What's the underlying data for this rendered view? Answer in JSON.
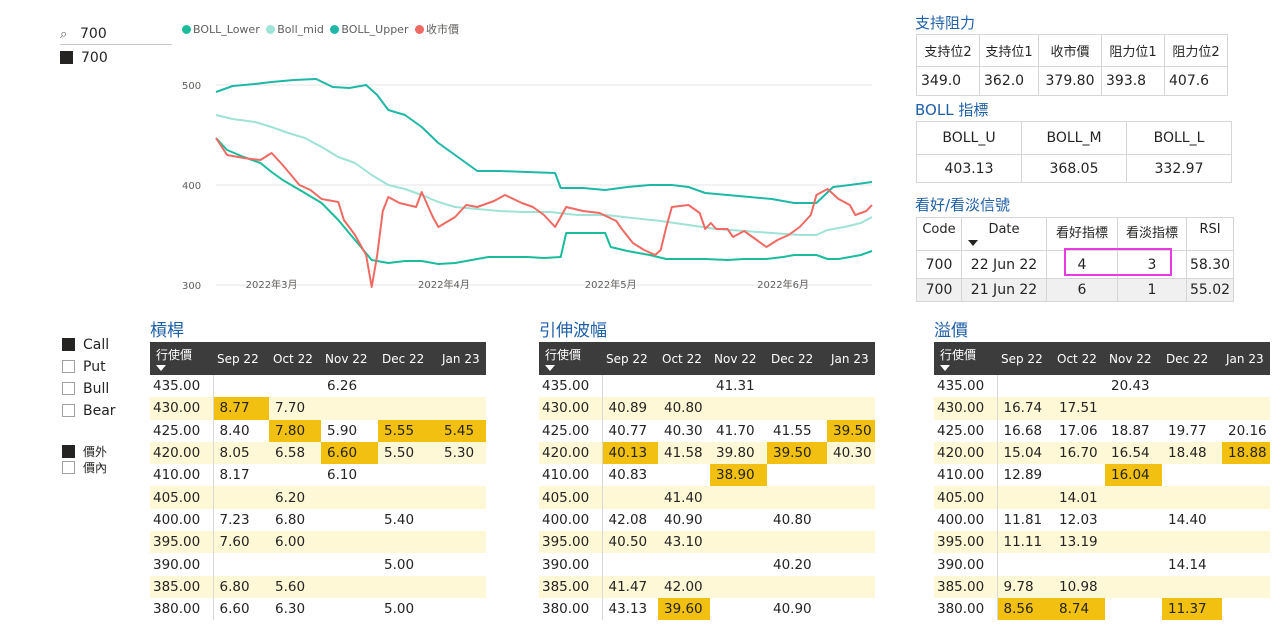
{
  "slicer": {
    "search_value": "700",
    "items": [
      {
        "label": "700",
        "checked": true
      }
    ]
  },
  "options_slicer": [
    {
      "label": "Call",
      "checked": true
    },
    {
      "label": "Put",
      "checked": false
    },
    {
      "label": "Bull",
      "checked": false
    },
    {
      "label": "Bear",
      "checked": false
    }
  ],
  "money_slicer": [
    {
      "label": "價外",
      "checked": true
    },
    {
      "label": "價內",
      "checked": false
    }
  ],
  "chart_data": {
    "type": "line",
    "title": "",
    "xlabel": "",
    "ylabel": "",
    "ylim": [
      285,
      525
    ],
    "yticks": [
      300,
      400,
      500
    ],
    "x_ticks": [
      "2022年3月",
      "2022年4月",
      "2022年5月",
      "2022年6月"
    ],
    "x_range_days": [
      0,
      118
    ],
    "x_tick_days": [
      10,
      41,
      71,
      102
    ],
    "series": [
      {
        "name": "BOLL_Lower",
        "color": "#1abc9c",
        "points": [
          [
            0,
            447
          ],
          [
            2,
            435
          ],
          [
            5,
            428
          ],
          [
            8,
            422
          ],
          [
            10,
            413
          ],
          [
            12,
            405
          ],
          [
            16,
            392
          ],
          [
            19,
            382
          ],
          [
            22,
            365
          ],
          [
            25,
            345
          ],
          [
            28,
            325
          ],
          [
            31,
            322
          ],
          [
            34,
            324
          ],
          [
            37,
            324
          ],
          [
            40,
            321
          ],
          [
            43,
            322
          ],
          [
            46,
            325
          ],
          [
            49,
            328
          ],
          [
            52,
            328
          ],
          [
            56,
            328
          ],
          [
            59,
            327
          ],
          [
            62,
            328
          ],
          [
            63,
            352
          ],
          [
            70,
            352
          ],
          [
            71,
            338
          ],
          [
            74,
            334
          ],
          [
            78,
            330
          ],
          [
            81,
            326
          ],
          [
            84,
            326
          ],
          [
            88,
            326
          ],
          [
            92,
            325
          ],
          [
            95,
            326
          ],
          [
            99,
            326
          ],
          [
            102,
            328
          ],
          [
            104,
            330
          ],
          [
            108,
            330
          ],
          [
            110,
            326
          ],
          [
            112,
            326
          ],
          [
            114,
            328
          ],
          [
            116,
            330
          ],
          [
            118,
            334
          ]
        ]
      },
      {
        "name": "Boll_mid",
        "color": "#9fe2d6",
        "points": [
          [
            0,
            470
          ],
          [
            3,
            466
          ],
          [
            7,
            463
          ],
          [
            10,
            458
          ],
          [
            13,
            452
          ],
          [
            16,
            447
          ],
          [
            19,
            438
          ],
          [
            22,
            428
          ],
          [
            25,
            422
          ],
          [
            28,
            410
          ],
          [
            31,
            400
          ],
          [
            34,
            396
          ],
          [
            37,
            390
          ],
          [
            40,
            383
          ],
          [
            43,
            378
          ],
          [
            47,
            376
          ],
          [
            51,
            374
          ],
          [
            55,
            373
          ],
          [
            60,
            373
          ],
          [
            65,
            370
          ],
          [
            70,
            370
          ],
          [
            75,
            367
          ],
          [
            80,
            364
          ],
          [
            85,
            360
          ],
          [
            90,
            356
          ],
          [
            95,
            354
          ],
          [
            100,
            352
          ],
          [
            105,
            350
          ],
          [
            108,
            350
          ],
          [
            110,
            355
          ],
          [
            113,
            358
          ],
          [
            116,
            362
          ],
          [
            118,
            368
          ]
        ]
      },
      {
        "name": "BOLL_Upper",
        "color": "#1fb8a6",
        "points": [
          [
            0,
            493
          ],
          [
            3,
            499
          ],
          [
            7,
            501
          ],
          [
            10,
            503
          ],
          [
            14,
            505
          ],
          [
            18,
            506
          ],
          [
            21,
            498
          ],
          [
            24,
            497
          ],
          [
            27,
            500
          ],
          [
            29,
            490
          ],
          [
            31,
            475
          ],
          [
            34,
            470
          ],
          [
            37,
            458
          ],
          [
            40,
            442
          ],
          [
            43,
            430
          ],
          [
            45,
            422
          ],
          [
            47,
            414
          ],
          [
            51,
            414
          ],
          [
            56,
            413
          ],
          [
            61,
            412
          ],
          [
            62,
            397
          ],
          [
            66,
            397
          ],
          [
            70,
            395
          ],
          [
            74,
            398
          ],
          [
            78,
            400
          ],
          [
            82,
            400
          ],
          [
            85,
            398
          ],
          [
            88,
            392
          ],
          [
            92,
            390
          ],
          [
            96,
            388
          ],
          [
            100,
            386
          ],
          [
            104,
            382
          ],
          [
            108,
            382
          ],
          [
            111,
            398
          ],
          [
            114,
            400
          ],
          [
            118,
            403
          ]
        ]
      },
      {
        "name": "收市價",
        "color": "#f06a64",
        "points": [
          [
            0,
            447
          ],
          [
            2,
            430
          ],
          [
            5,
            427
          ],
          [
            8,
            425
          ],
          [
            10,
            432
          ],
          [
            12,
            420
          ],
          [
            15,
            400
          ],
          [
            17,
            395
          ],
          [
            19,
            386
          ],
          [
            22,
            383
          ],
          [
            23,
            365
          ],
          [
            25,
            350
          ],
          [
            27,
            330
          ],
          [
            28,
            298
          ],
          [
            29,
            330
          ],
          [
            30,
            374
          ],
          [
            31,
            388
          ],
          [
            33,
            382
          ],
          [
            36,
            378
          ],
          [
            37,
            393
          ],
          [
            39,
            368
          ],
          [
            40,
            358
          ],
          [
            43,
            368
          ],
          [
            45,
            380
          ],
          [
            47,
            378
          ],
          [
            50,
            384
          ],
          [
            52,
            390
          ],
          [
            55,
            382
          ],
          [
            57,
            378
          ],
          [
            59,
            370
          ],
          [
            61,
            358
          ],
          [
            63,
            378
          ],
          [
            66,
            374
          ],
          [
            69,
            372
          ],
          [
            72,
            364
          ],
          [
            73,
            356
          ],
          [
            75,
            342
          ],
          [
            77,
            335
          ],
          [
            79,
            330
          ],
          [
            80,
            335
          ],
          [
            81,
            358
          ],
          [
            82,
            378
          ],
          [
            85,
            380
          ],
          [
            86,
            376
          ],
          [
            87,
            372
          ],
          [
            88,
            356
          ],
          [
            89,
            362
          ],
          [
            90,
            356
          ],
          [
            92,
            356
          ],
          [
            93,
            348
          ],
          [
            95,
            354
          ],
          [
            97,
            346
          ],
          [
            99,
            338
          ],
          [
            101,
            345
          ],
          [
            103,
            350
          ],
          [
            105,
            358
          ],
          [
            107,
            370
          ],
          [
            108,
            390
          ],
          [
            110,
            396
          ],
          [
            112,
            386
          ],
          [
            114,
            380
          ],
          [
            115,
            370
          ],
          [
            117,
            374
          ],
          [
            118,
            380
          ]
        ]
      }
    ]
  },
  "support_resistance": {
    "title": "支持阻力",
    "headers": [
      "支持位2",
      "支持位1",
      "收市價",
      "阻力位1",
      "阻力位2"
    ],
    "values": [
      "349.0",
      "362.0",
      "379.80",
      "393.8",
      "407.6"
    ]
  },
  "boll": {
    "title": "BOLL 指標",
    "headers": [
      "BOLL_U",
      "BOLL_M",
      "BOLL_L"
    ],
    "values": [
      "403.13",
      "368.05",
      "332.97"
    ]
  },
  "signals": {
    "title": "看好/看淡信號",
    "headers": [
      "Code",
      "Date",
      "看好指標",
      "看淡指標",
      "RSI"
    ],
    "rows": [
      [
        "700",
        "22 Jun 22",
        "4",
        "3",
        "58.30"
      ],
      [
        "700",
        "21 Jun 22",
        "6",
        "1",
        "55.02"
      ]
    ]
  },
  "matrices": [
    {
      "title": "槓桿",
      "headers": [
        "行使價",
        "Sep 22",
        "Oct 22",
        "Nov 22",
        "Dec 22",
        "Jan 23"
      ],
      "rows": [
        {
          "k": "435.00",
          "v": [
            "",
            "",
            "6.26",
            "",
            ""
          ],
          "hl": []
        },
        {
          "k": "430.00",
          "v": [
            "8.77",
            "7.70",
            "",
            "",
            ""
          ],
          "hl": [
            0
          ]
        },
        {
          "k": "425.00",
          "v": [
            "8.40",
            "7.80",
            "5.90",
            "5.55",
            "5.45"
          ],
          "hl": [
            1,
            3,
            4
          ]
        },
        {
          "k": "420.00",
          "v": [
            "8.05",
            "6.58",
            "6.60",
            "5.50",
            "5.30"
          ],
          "hl": [
            2
          ]
        },
        {
          "k": "410.00",
          "v": [
            "8.17",
            "",
            "6.10",
            "",
            ""
          ],
          "hl": []
        },
        {
          "k": "405.00",
          "v": [
            "",
            "6.20",
            "",
            "",
            ""
          ],
          "hl": []
        },
        {
          "k": "400.00",
          "v": [
            "7.23",
            "6.80",
            "",
            "5.40",
            ""
          ],
          "hl": []
        },
        {
          "k": "395.00",
          "v": [
            "7.60",
            "6.00",
            "",
            "",
            ""
          ],
          "hl": []
        },
        {
          "k": "390.00",
          "v": [
            "",
            "",
            "",
            "5.00",
            ""
          ],
          "hl": []
        },
        {
          "k": "385.00",
          "v": [
            "6.80",
            "5.60",
            "",
            "",
            ""
          ],
          "hl": []
        },
        {
          "k": "380.00",
          "v": [
            "6.60",
            "6.30",
            "",
            "5.00",
            ""
          ],
          "hl": []
        }
      ]
    },
    {
      "title": "引伸波幅",
      "headers": [
        "行使價",
        "Sep 22",
        "Oct 22",
        "Nov 22",
        "Dec 22",
        "Jan 23"
      ],
      "rows": [
        {
          "k": "435.00",
          "v": [
            "",
            "",
            "41.31",
            "",
            ""
          ],
          "hl": []
        },
        {
          "k": "430.00",
          "v": [
            "40.89",
            "40.80",
            "",
            "",
            ""
          ],
          "hl": []
        },
        {
          "k": "425.00",
          "v": [
            "40.77",
            "40.30",
            "41.70",
            "41.55",
            "39.50"
          ],
          "hl": [
            4
          ]
        },
        {
          "k": "420.00",
          "v": [
            "40.13",
            "41.58",
            "39.80",
            "39.50",
            "40.30"
          ],
          "hl": [
            0,
            3
          ]
        },
        {
          "k": "410.00",
          "v": [
            "40.83",
            "",
            "38.90",
            "",
            ""
          ],
          "hl": [
            2
          ]
        },
        {
          "k": "405.00",
          "v": [
            "",
            "41.40",
            "",
            "",
            ""
          ],
          "hl": []
        },
        {
          "k": "400.00",
          "v": [
            "42.08",
            "40.90",
            "",
            "40.80",
            ""
          ],
          "hl": []
        },
        {
          "k": "395.00",
          "v": [
            "40.50",
            "43.10",
            "",
            "",
            ""
          ],
          "hl": []
        },
        {
          "k": "390.00",
          "v": [
            "",
            "",
            "",
            "40.20",
            ""
          ],
          "hl": []
        },
        {
          "k": "385.00",
          "v": [
            "41.47",
            "42.00",
            "",
            "",
            ""
          ],
          "hl": []
        },
        {
          "k": "380.00",
          "v": [
            "43.13",
            "39.60",
            "",
            "40.90",
            ""
          ],
          "hl": [
            1
          ]
        }
      ]
    },
    {
      "title": "溢價",
      "headers": [
        "行使價",
        "Sep 22",
        "Oct 22",
        "Nov 22",
        "Dec 22",
        "Jan 23"
      ],
      "rows": [
        {
          "k": "435.00",
          "v": [
            "",
            "",
            "20.43",
            "",
            ""
          ],
          "hl": []
        },
        {
          "k": "430.00",
          "v": [
            "16.74",
            "17.51",
            "",
            "",
            ""
          ],
          "hl": []
        },
        {
          "k": "425.00",
          "v": [
            "16.68",
            "17.06",
            "18.87",
            "19.77",
            "20.16"
          ],
          "hl": []
        },
        {
          "k": "420.00",
          "v": [
            "15.04",
            "16.70",
            "16.54",
            "18.48",
            "18.88"
          ],
          "hl": [
            4
          ]
        },
        {
          "k": "410.00",
          "v": [
            "12.89",
            "",
            "16.04",
            "",
            ""
          ],
          "hl": [
            2
          ]
        },
        {
          "k": "405.00",
          "v": [
            "",
            "14.01",
            "",
            "",
            ""
          ],
          "hl": []
        },
        {
          "k": "400.00",
          "v": [
            "11.81",
            "12.03",
            "",
            "14.40",
            ""
          ],
          "hl": []
        },
        {
          "k": "395.00",
          "v": [
            "11.11",
            "13.19",
            "",
            "",
            ""
          ],
          "hl": []
        },
        {
          "k": "390.00",
          "v": [
            "",
            "",
            "",
            "14.14",
            ""
          ],
          "hl": []
        },
        {
          "k": "385.00",
          "v": [
            "9.78",
            "10.98",
            "",
            "",
            ""
          ],
          "hl": []
        },
        {
          "k": "380.00",
          "v": [
            "8.56",
            "8.74",
            "",
            "11.37",
            ""
          ],
          "hl": [
            0,
            1,
            3
          ]
        }
      ]
    }
  ],
  "colors": {
    "accent": "#1f5fa8",
    "highlight": "#f2c010",
    "alt_row": "#fff8d6",
    "focus_box": "#e83ce0"
  }
}
